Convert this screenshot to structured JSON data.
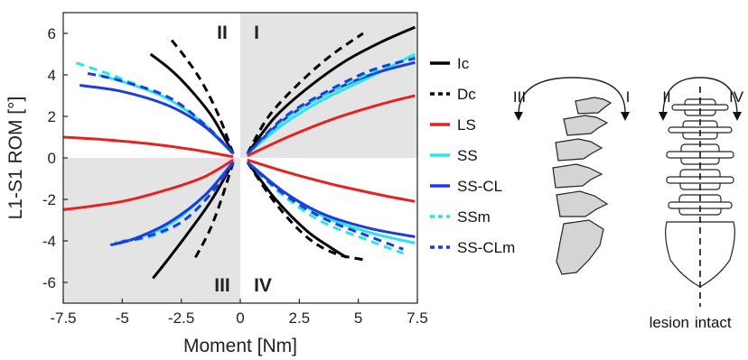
{
  "chart_data": {
    "type": "line",
    "xlabel": "Moment [Nm]",
    "ylabel": "L1-S1 ROM [°]",
    "xlim": [
      -7.5,
      7.5
    ],
    "ylim": [
      -7,
      7
    ],
    "xticks": [
      "-7.5",
      "-5",
      "-2.5",
      "0",
      "2.5",
      "5",
      "7.5"
    ],
    "yticks": [
      "-6",
      "-4",
      "-2",
      "0",
      "2",
      "4",
      "6"
    ],
    "grid": false,
    "legend_position": "right",
    "shaded_quadrants": [
      "I",
      "III"
    ],
    "quadrant_labels": [
      "I",
      "II",
      "III",
      "IV"
    ],
    "series": [
      {
        "name": "Ic",
        "color": "#000000",
        "dash": "solid",
        "branches": [
          {
            "x": [
              0.3,
              1.5,
              3.0,
              4.5,
              6.0,
              7.4
            ],
            "y": [
              0.2,
              2.0,
              3.5,
              4.7,
              5.6,
              6.3
            ]
          },
          {
            "x": [
              -0.3,
              -1.2,
              -2.2,
              -3.0,
              -3.8
            ],
            "y": [
              0.2,
              2.0,
              3.4,
              4.3,
              5.0
            ]
          },
          {
            "x": [
              -0.3,
              -1.2,
              -2.2,
              -3.0,
              -3.7
            ],
            "y": [
              -0.2,
              -2.0,
              -3.6,
              -4.8,
              -5.8
            ]
          },
          {
            "x": [
              0.3,
              1.5,
              2.8,
              3.8,
              4.5
            ],
            "y": [
              -0.2,
              -2.0,
              -3.5,
              -4.3,
              -4.8
            ]
          }
        ]
      },
      {
        "name": "Dc",
        "color": "#000000",
        "dash": "dashed",
        "branches": [
          {
            "x": [
              0.3,
              1.2,
              2.5,
              3.8,
              5.2
            ],
            "y": [
              0.2,
              2.0,
              3.6,
              4.9,
              6.0
            ]
          },
          {
            "x": [
              -0.3,
              -0.9,
              -1.6,
              -2.3,
              -3.0
            ],
            "y": [
              0.2,
              2.0,
              3.6,
              4.8,
              5.8
            ]
          },
          {
            "x": [
              -0.3,
              -0.8,
              -1.3,
              -1.9
            ],
            "y": [
              -0.2,
              -2.0,
              -3.5,
              -4.8
            ]
          },
          {
            "x": [
              0.3,
              1.5,
              2.8,
              4.0,
              5.2
            ],
            "y": [
              -0.2,
              -2.2,
              -3.8,
              -4.6,
              -4.9
            ]
          }
        ]
      },
      {
        "name": "LS",
        "color": "#e8211f",
        "dash": "solid",
        "branches": [
          {
            "x": [
              0.3,
              2.0,
              4.0,
              6.0,
              7.4
            ],
            "y": [
              0.1,
              1.0,
              1.9,
              2.6,
              3.0
            ]
          },
          {
            "x": [
              -0.3,
              -2.0,
              -4.0,
              -6.0,
              -7.5
            ],
            "y": [
              0.05,
              0.4,
              0.7,
              0.9,
              1.0
            ]
          },
          {
            "x": [
              -0.3,
              -1.5,
              -3.0,
              -5.0,
              -7.5
            ],
            "y": [
              -0.1,
              -0.9,
              -1.5,
              -2.1,
              -2.5
            ]
          },
          {
            "x": [
              0.3,
              2.0,
              4.0,
              6.0,
              7.4
            ],
            "y": [
              -0.1,
              -0.7,
              -1.3,
              -1.8,
              -2.1
            ]
          }
        ]
      },
      {
        "name": "SS",
        "color": "#22e6f0",
        "dash": "solid",
        "branches": [
          {
            "x": [
              0.3,
              1.8,
              3.5,
              5.5,
              7.4
            ],
            "y": [
              0.2,
              1.6,
              2.8,
              3.9,
              5.0
            ]
          },
          {
            "x": [
              -0.3,
              -1.5,
              -3.0,
              -4.5,
              -6.0
            ],
            "y": [
              0.2,
              1.6,
              2.8,
              3.5,
              4.0
            ]
          },
          {
            "x": [
              -0.3,
              -1.5,
              -3.0,
              -4.5,
              -5.3
            ],
            "y": [
              -0.2,
              -1.8,
              -3.2,
              -3.9,
              -4.1
            ]
          },
          {
            "x": [
              0.3,
              1.8,
              3.5,
              5.5,
              7.4
            ],
            "y": [
              -0.2,
              -1.6,
              -2.8,
              -3.6,
              -4.1
            ]
          }
        ]
      },
      {
        "name": "SS-CL",
        "color": "#1a3de0",
        "dash": "solid",
        "branches": [
          {
            "x": [
              0.3,
              1.8,
              3.5,
              5.5,
              7.4
            ],
            "y": [
              0.2,
              1.8,
              3.0,
              4.0,
              4.6
            ]
          },
          {
            "x": [
              -0.3,
              -1.5,
              -3.0,
              -5.0,
              -6.8
            ],
            "y": [
              0.2,
              1.5,
              2.5,
              3.2,
              3.5
            ]
          },
          {
            "x": [
              -0.3,
              -1.5,
              -3.0,
              -4.5,
              -5.5
            ],
            "y": [
              -0.2,
              -1.8,
              -3.1,
              -3.9,
              -4.2
            ]
          },
          {
            "x": [
              0.3,
              1.8,
              3.5,
              5.5,
              7.4
            ],
            "y": [
              -0.2,
              -1.6,
              -2.7,
              -3.4,
              -3.8
            ]
          }
        ]
      },
      {
        "name": "SSm",
        "color": "#22e6f0",
        "dash": "dashed",
        "branches": [
          {
            "x": [
              0.3,
              1.8,
              3.5,
              5.5,
              7.4
            ],
            "y": [
              0.2,
              1.8,
              3.0,
              4.1,
              4.9
            ]
          },
          {
            "x": [
              -0.3,
              -1.5,
              -3.0,
              -5.0,
              -7.0
            ],
            "y": [
              0.2,
              1.6,
              2.8,
              3.8,
              4.6
            ]
          },
          {
            "x": [
              -0.3,
              -1.3,
              -2.5,
              -3.8,
              -5.0
            ],
            "y": [
              -0.2,
              -1.8,
              -3.1,
              -3.8,
              -4.0
            ]
          },
          {
            "x": [
              0.3,
              1.8,
              3.5,
              5.5,
              6.9
            ],
            "y": [
              -0.2,
              -1.8,
              -3.1,
              -4.0,
              -4.6
            ]
          }
        ]
      },
      {
        "name": "SS-CLm",
        "color": "#1a3de0",
        "dash": "dashed",
        "branches": [
          {
            "x": [
              0.3,
              1.8,
              3.5,
              5.5,
              7.4
            ],
            "y": [
              0.2,
              1.9,
              3.1,
              4.2,
              4.8
            ]
          },
          {
            "x": [
              -0.3,
              -1.5,
              -3.0,
              -5.0,
              -6.6
            ],
            "y": [
              0.2,
              1.6,
              2.9,
              3.7,
              4.1
            ]
          },
          {
            "x": [
              -0.3,
              -1.3,
              -2.5,
              -4.0,
              -5.3
            ],
            "y": [
              -0.2,
              -1.8,
              -3.1,
              -3.8,
              -4.1
            ]
          },
          {
            "x": [
              0.3,
              1.8,
              3.5,
              5.5,
              6.9
            ],
            "y": [
              -0.2,
              -1.7,
              -2.9,
              -3.8,
              -4.4
            ]
          }
        ]
      }
    ]
  },
  "diagram": {
    "left_arrow_labels": [
      "III",
      "I"
    ],
    "right_arrow_labels": [
      "II",
      "IV"
    ],
    "side_labels": [
      "lesion",
      "intact"
    ]
  }
}
